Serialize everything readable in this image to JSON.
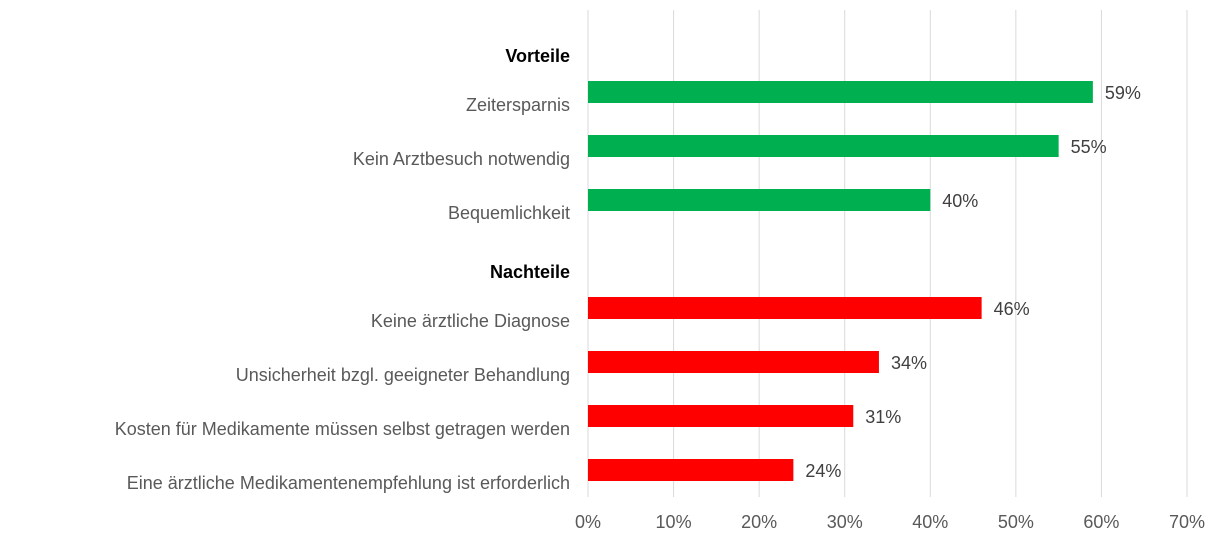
{
  "chart_data": {
    "type": "bar",
    "orientation": "horizontal",
    "groups": [
      {
        "name": "Vorteile",
        "color": "#00b050",
        "categories": [
          "Zeitersparnis",
          "Kein Arztbesuch notwendig",
          "Bequemlichkeit"
        ],
        "values": [
          59,
          55,
          40
        ],
        "value_labels": [
          "59%",
          "55%",
          "40%"
        ]
      },
      {
        "name": "Nachteile",
        "color": "#ff0000",
        "categories": [
          "Keine ärztliche Diagnose",
          "Unsicherheit bzgl. geeigneter Behandlung",
          "Kosten für Medikamente müssen selbst getragen werden",
          "Eine ärztliche Medikamentenempfehlung ist erforderlich"
        ],
        "values": [
          46,
          34,
          31,
          24
        ],
        "value_labels": [
          "46%",
          "34%",
          "31%",
          "24%"
        ]
      }
    ],
    "xlim": [
      0,
      70
    ],
    "xticks": [
      {
        "value": 0,
        "label": "0%"
      },
      {
        "value": 10,
        "label": "10%"
      },
      {
        "value": 20,
        "label": "20%"
      },
      {
        "value": 30,
        "label": "30%"
      },
      {
        "value": 40,
        "label": "40%"
      },
      {
        "value": 50,
        "label": "50%"
      },
      {
        "value": 60,
        "label": "60%"
      },
      {
        "value": 70,
        "label": "70%"
      }
    ],
    "grid": true
  }
}
